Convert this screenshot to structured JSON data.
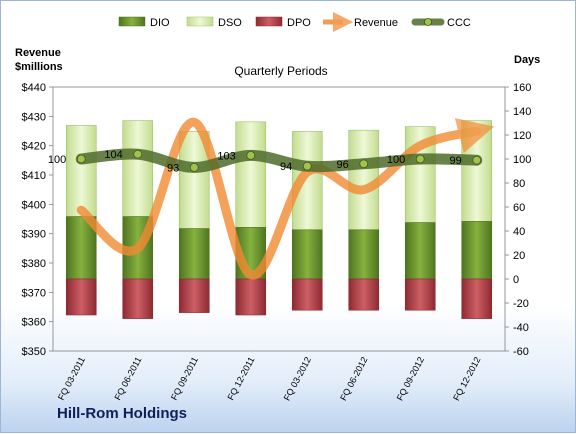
{
  "company": "Hill-Rom Holdings",
  "chart_data": {
    "type": "bar",
    "title": "Quarterly Periods",
    "left_axis": {
      "label_line1": "Revenue",
      "label_line2": "$millions",
      "ticks": [
        "$350",
        "$360",
        "$370",
        "$380",
        "$390",
        "$400",
        "$410",
        "$420",
        "$430",
        "$440"
      ],
      "ylim": [
        350,
        440
      ]
    },
    "right_axis": {
      "label": "Days",
      "ticks": [
        "-60",
        "-40",
        "-20",
        "0",
        "20",
        "40",
        "60",
        "80",
        "100",
        "120",
        "140",
        "160"
      ],
      "ylim": [
        -60,
        160
      ]
    },
    "categories": [
      "FQ 03-2011",
      "FQ 06-2011",
      "FQ 09-2011",
      "FQ 12-2011",
      "FQ 03-2012",
      "FQ 06-2012",
      "FQ 09-2012",
      "FQ 12-2012"
    ],
    "series": [
      {
        "name": "DIO",
        "axis": "right",
        "values": [
          52,
          52,
          42,
          43,
          41,
          41,
          47,
          48
        ],
        "color": "#6e9a2e"
      },
      {
        "name": "DSO",
        "axis": "right",
        "values": [
          128,
          132,
          123,
          131,
          123,
          124,
          127,
          132
        ],
        "color": "#d8ecb0"
      },
      {
        "name": "DPO",
        "axis": "right",
        "values": [
          -30,
          -33,
          -28,
          -30,
          -26,
          -26,
          -26,
          -33
        ],
        "color": "#b8454d"
      },
      {
        "name": "Revenue",
        "axis": "left",
        "values": [
          398,
          385,
          428,
          376,
          411,
          405,
          420,
          425
        ],
        "color": "#f28a33"
      },
      {
        "name": "CCC",
        "axis": "right",
        "values": [
          100,
          104,
          93,
          103,
          94,
          96,
          100,
          99
        ],
        "color": "#5e7a33"
      }
    ],
    "data_labels": [
      "100",
      "104",
      "93",
      "103",
      "94",
      "96",
      "100",
      "99"
    ],
    "legend_position": "top",
    "grid": false
  }
}
